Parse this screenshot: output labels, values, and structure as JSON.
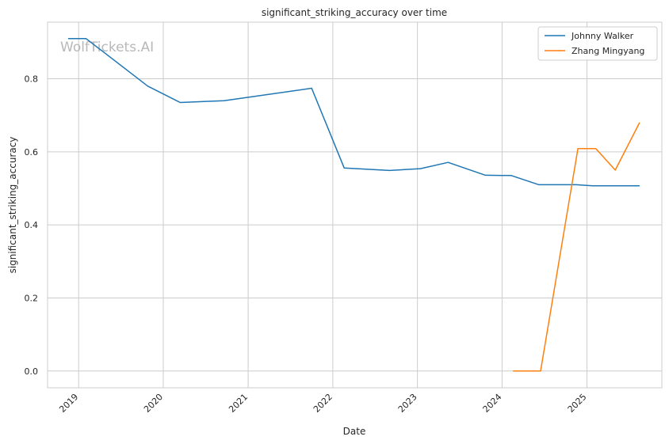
{
  "chart_data": {
    "type": "line",
    "title": "significant_striking_accuracy over time",
    "xlabel": "Date",
    "ylabel": "significant_striking_accuracy",
    "watermark": "WolfTickets.AI",
    "x_ticks": [
      "2019",
      "2020",
      "2021",
      "2022",
      "2023",
      "2024",
      "2025"
    ],
    "y_ticks": [
      "0.0",
      "0.2",
      "0.4",
      "0.6",
      "0.8"
    ],
    "xlim": [
      "2018-08-20",
      "2025-11-20"
    ],
    "ylim": [
      -0.046,
      0.955
    ],
    "grid": true,
    "legend_position": "top-right",
    "series": [
      {
        "name": "Johnny Walker",
        "color": "#1f77b4",
        "points": [
          [
            "2018-11-17",
            0.91
          ],
          [
            "2019-02-02",
            0.91
          ],
          [
            "2019-10-26",
            0.78
          ],
          [
            "2020-03-14",
            0.735
          ],
          [
            "2020-09-19",
            0.74
          ],
          [
            "2021-10-02",
            0.774
          ],
          [
            "2022-02-19",
            0.556
          ],
          [
            "2022-09-03",
            0.549
          ],
          [
            "2023-01-14",
            0.554
          ],
          [
            "2023-05-13",
            0.571
          ],
          [
            "2023-10-21",
            0.536
          ],
          [
            "2024-02-10",
            0.535
          ],
          [
            "2024-06-08",
            0.51
          ],
          [
            "2024-11-16",
            0.51
          ],
          [
            "2025-01-25",
            0.507
          ],
          [
            "2025-08-16",
            0.507
          ]
        ]
      },
      {
        "name": "Zhang Mingyang",
        "color": "#ff7f0e",
        "points": [
          [
            "2024-02-17",
            0.0
          ],
          [
            "2024-06-15",
            0.0
          ],
          [
            "2024-11-23",
            0.609
          ],
          [
            "2025-02-08",
            0.609
          ],
          [
            "2025-05-03",
            0.55
          ],
          [
            "2025-08-16",
            0.68
          ]
        ]
      }
    ]
  }
}
